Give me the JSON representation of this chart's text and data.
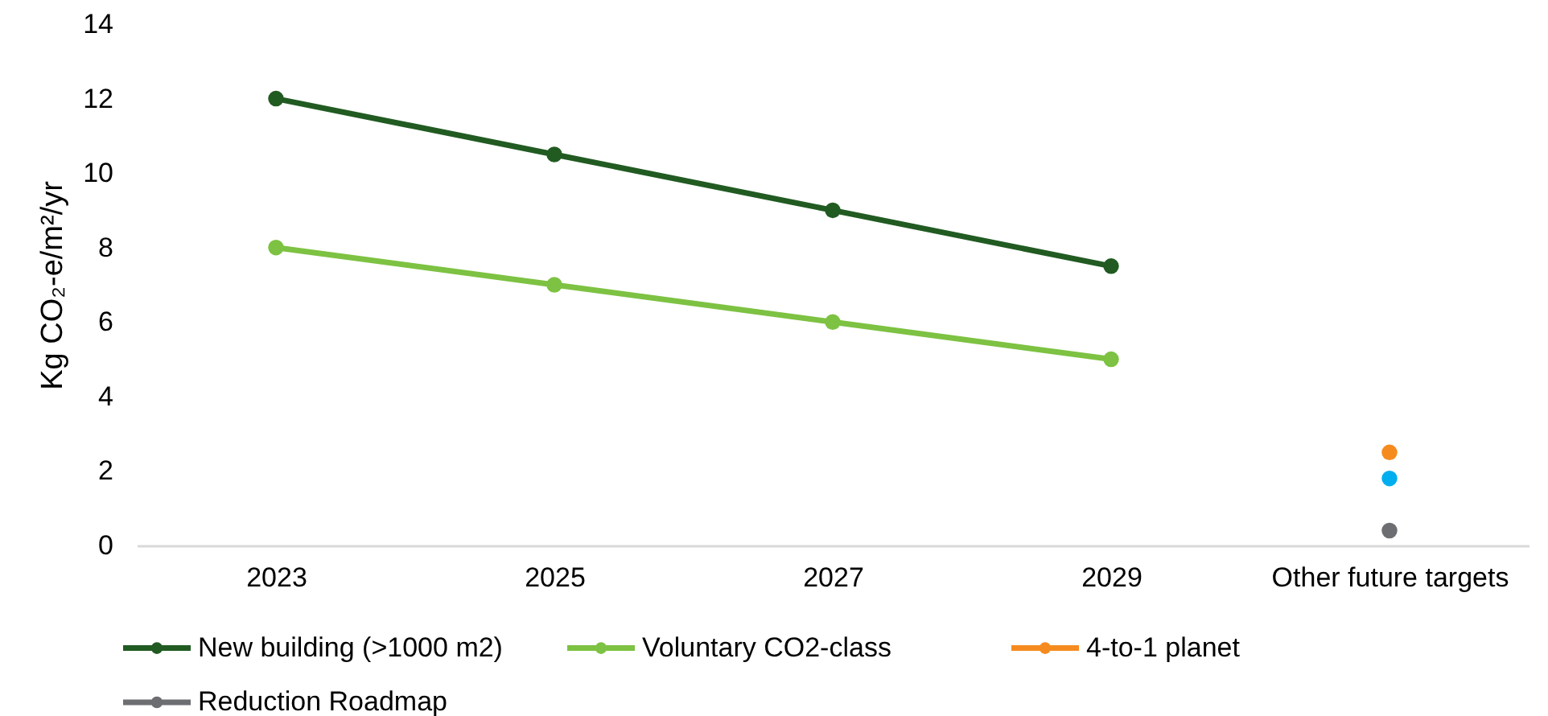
{
  "chart_data": {
    "type": "line",
    "ylabel": "Kg CO₂-e/m²/yr",
    "categories": [
      "2023",
      "2025",
      "2027",
      "2029",
      "Other future targets"
    ],
    "series": [
      {
        "name": "New building (>1000 m2)",
        "color": "#215b22",
        "values": [
          12,
          10.5,
          9,
          7.5,
          null
        ]
      },
      {
        "name": "Voluntary CO2-class",
        "color": "#7dc242",
        "values": [
          8,
          7,
          6,
          5,
          null
        ]
      },
      {
        "name": "4-to-1 planet",
        "type": "scatter",
        "color": "#f58b1f",
        "values": [
          null,
          null,
          null,
          null,
          2.5
        ]
      },
      {
        "type": "scatter",
        "color": "#00aeef",
        "values": [
          null,
          null,
          null,
          null,
          1.8
        ]
      },
      {
        "name": "Reduction Roadmap",
        "type": "scatter",
        "color": "#6d6e71",
        "values": [
          null,
          null,
          null,
          null,
          0.4
        ]
      }
    ],
    "ylim": [
      0,
      14
    ],
    "yticks": [
      0,
      2,
      4,
      6,
      8,
      10,
      12,
      14
    ],
    "grid": false,
    "legend": "bottom",
    "marker": "circle",
    "line_style": "solid"
  }
}
